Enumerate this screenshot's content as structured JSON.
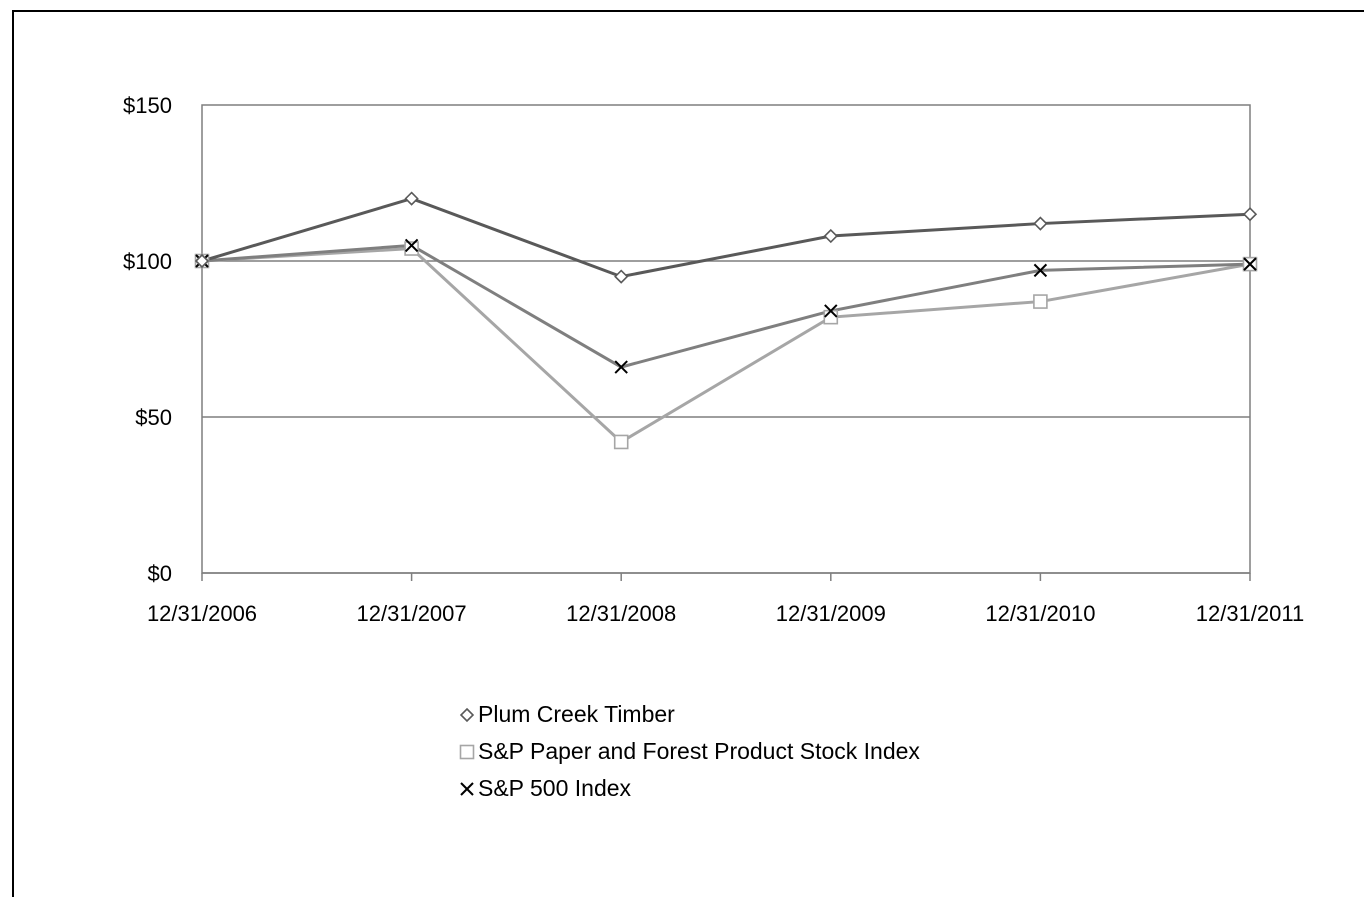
{
  "chart_data": {
    "type": "line",
    "title": "",
    "xlabel": "",
    "ylabel": "",
    "categories": [
      "12/31/2006",
      "12/31/2007",
      "12/31/2008",
      "12/31/2009",
      "12/31/2010",
      "12/31/2011"
    ],
    "ylim": [
      0,
      150
    ],
    "yticks": [
      0,
      50,
      100,
      150
    ],
    "ytick_labels": [
      "$0",
      "$50",
      "$100",
      "$150"
    ],
    "grid": "horizontal",
    "legend_position": "bottom-center",
    "series": [
      {
        "name": "Plum Creek Timber",
        "marker": "diamond",
        "color": "#595959",
        "values": [
          100,
          120,
          95,
          108,
          112,
          115
        ]
      },
      {
        "name": "S&P Paper and Forest Product Stock Index",
        "marker": "square",
        "color": "#a6a6a6",
        "values": [
          100,
          104,
          42,
          82,
          87,
          99
        ]
      },
      {
        "name": "S&P 500 Index",
        "marker": "x",
        "color": "#7f7f7f",
        "values": [
          100,
          105,
          66,
          84,
          97,
          99
        ]
      }
    ]
  }
}
